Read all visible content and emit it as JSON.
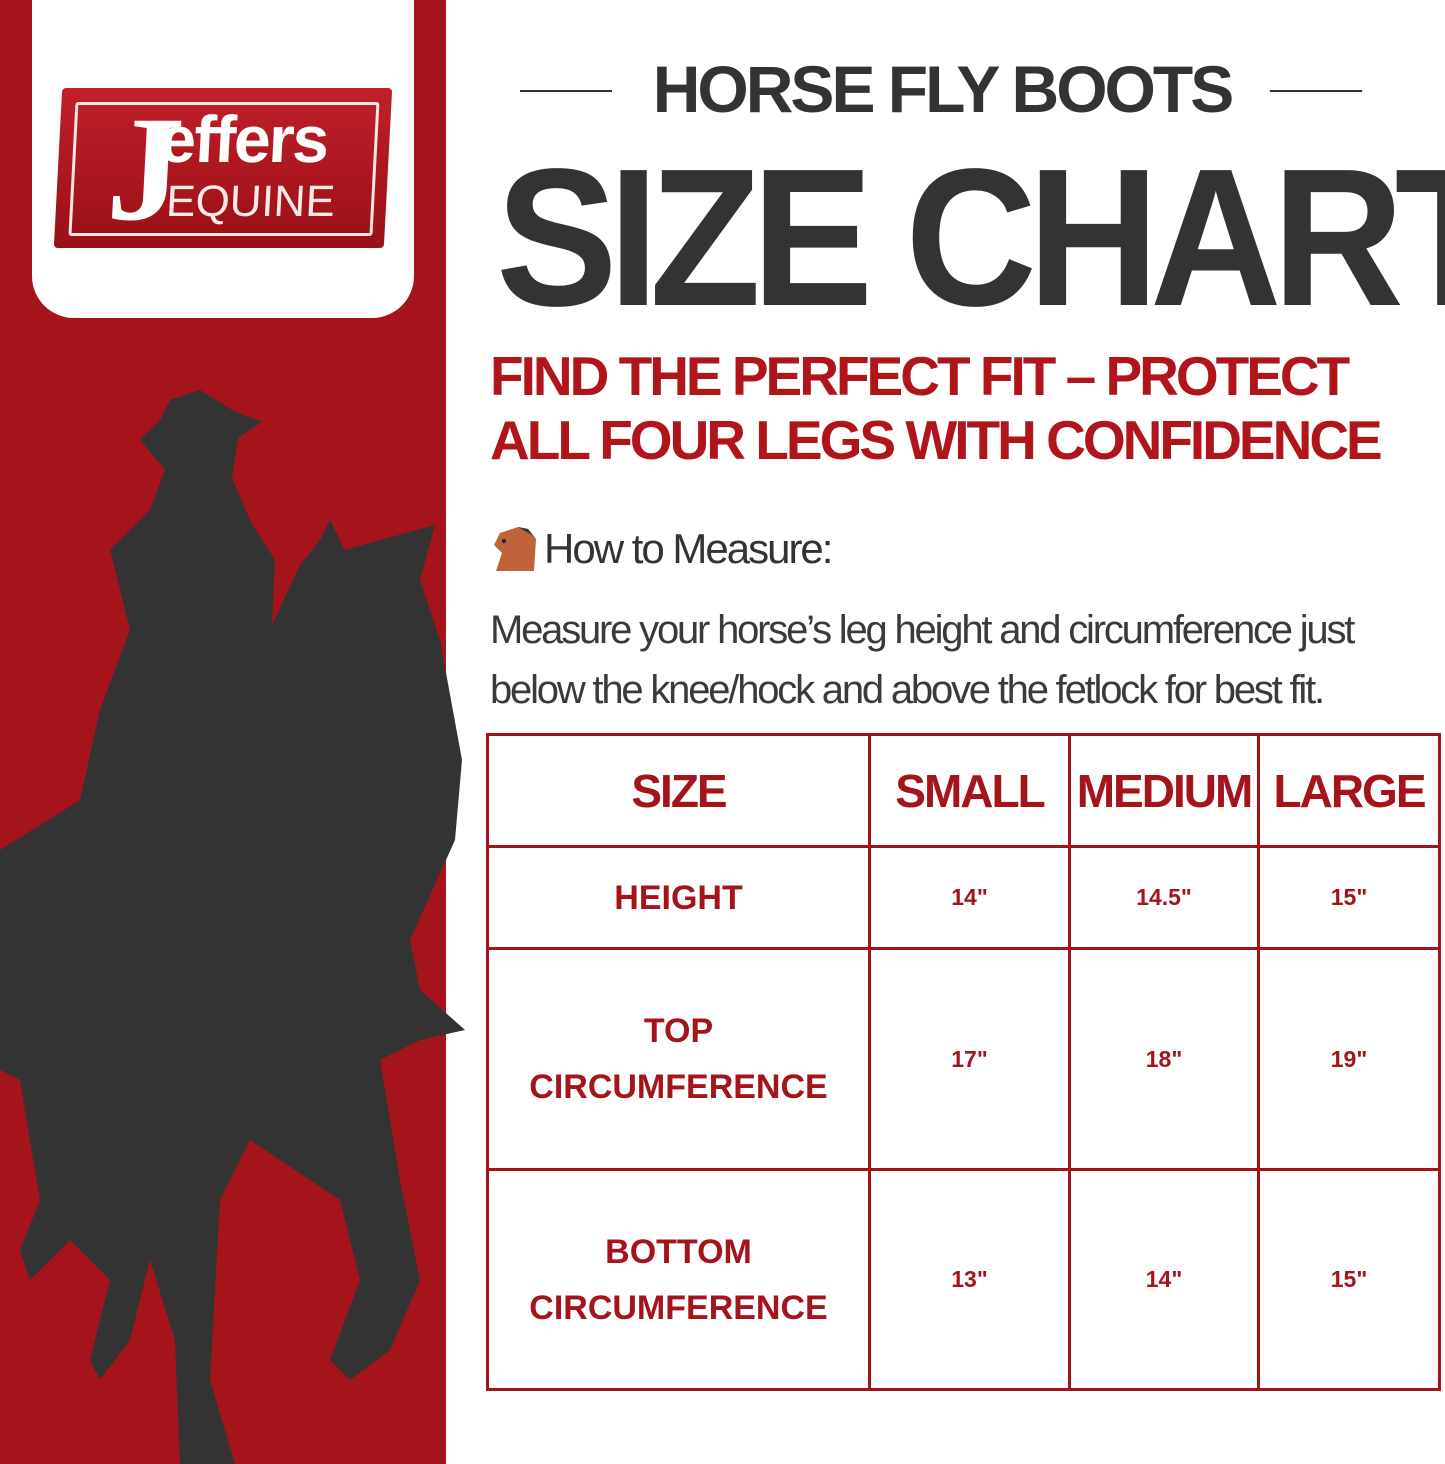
{
  "brand": {
    "logo_text": "Jeffers EQUINE",
    "color": "#a5141b"
  },
  "header": {
    "kicker": "HORSE FLY BOOTS",
    "title": "SIZE CHART",
    "subtitle": "FIND THE PERFECT FIT – PROTECT ALL FOUR LEGS WITH CONFIDENCE"
  },
  "measure": {
    "icon": "horse-head-icon",
    "heading": "How to Measure:",
    "text": "Measure your horse’s leg height and circumference just below the knee/hock and above the fetlock for best fit."
  },
  "table": {
    "headers": [
      "SIZE",
      "SMALL",
      "MEDIUM",
      "LARGE"
    ],
    "rows": [
      {
        "label": "HEIGHT",
        "values": [
          "14\"",
          "14.5\"",
          "15\""
        ]
      },
      {
        "label": "TOP CIRCUMFERENCE",
        "values": [
          "17\"",
          "18\"",
          "19\""
        ]
      },
      {
        "label": "BOTTOM CIRCUMFERENCE",
        "values": [
          "13\"",
          "14\"",
          "15\""
        ]
      }
    ]
  }
}
